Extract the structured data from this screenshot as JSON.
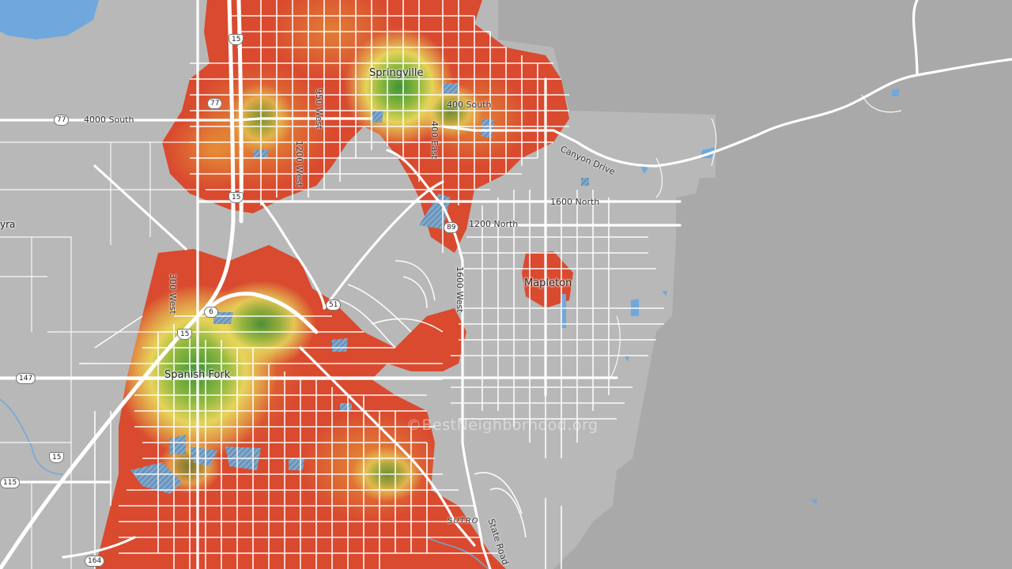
{
  "map": {
    "places": [
      {
        "id": "springville",
        "label": "Springville"
      },
      {
        "id": "spanish-fork",
        "label": "Spanish Fork"
      },
      {
        "id": "mapleton",
        "label": "Mapleton"
      },
      {
        "id": "palmyra-partial",
        "label": "yra"
      }
    ],
    "streets": [
      {
        "id": "4000-south",
        "label": "4000 South"
      },
      {
        "id": "400-south",
        "label": "400 South"
      },
      {
        "id": "canyon-drive",
        "label": "Canyon Drive"
      },
      {
        "id": "1600-north",
        "label": "1600 North"
      },
      {
        "id": "1200-north",
        "label": "1200 North"
      },
      {
        "id": "950-west",
        "label": "950 West"
      },
      {
        "id": "1200-west",
        "label": "1200 West"
      },
      {
        "id": "400-east",
        "label": "400 East"
      },
      {
        "id": "1600-west",
        "label": "1600 West"
      },
      {
        "id": "300-west",
        "label": "300 West"
      },
      {
        "id": "state-road",
        "label": "State Road"
      },
      {
        "id": "sutro",
        "label": "SUTRO"
      }
    ],
    "shields": [
      {
        "id": "i15-north",
        "label": "15"
      },
      {
        "id": "i15-mid",
        "label": "15"
      },
      {
        "id": "i15-sf",
        "label": "15"
      },
      {
        "id": "i15-south",
        "label": "15"
      },
      {
        "id": "us6",
        "label": "6"
      },
      {
        "id": "sr51",
        "label": "51"
      },
      {
        "id": "us89",
        "label": "89"
      },
      {
        "id": "sr77a",
        "label": "77"
      },
      {
        "id": "sr77b",
        "label": "77"
      },
      {
        "id": "sr147",
        "label": "147"
      },
      {
        "id": "sr115",
        "label": "115"
      },
      {
        "id": "sr164",
        "label": "164"
      }
    ],
    "watermark": "©BestNeighborhood.org",
    "colors": {
      "background": "#a9a9a9",
      "city_area": "#b6b6b6",
      "roads": "#ffffff",
      "water": "#6fa8dc",
      "heat_low": "#d9472e",
      "heat_mid": "#e8a13a",
      "heat_high_a": "#e8dc5a",
      "heat_high_b": "#4f9a36"
    }
  }
}
